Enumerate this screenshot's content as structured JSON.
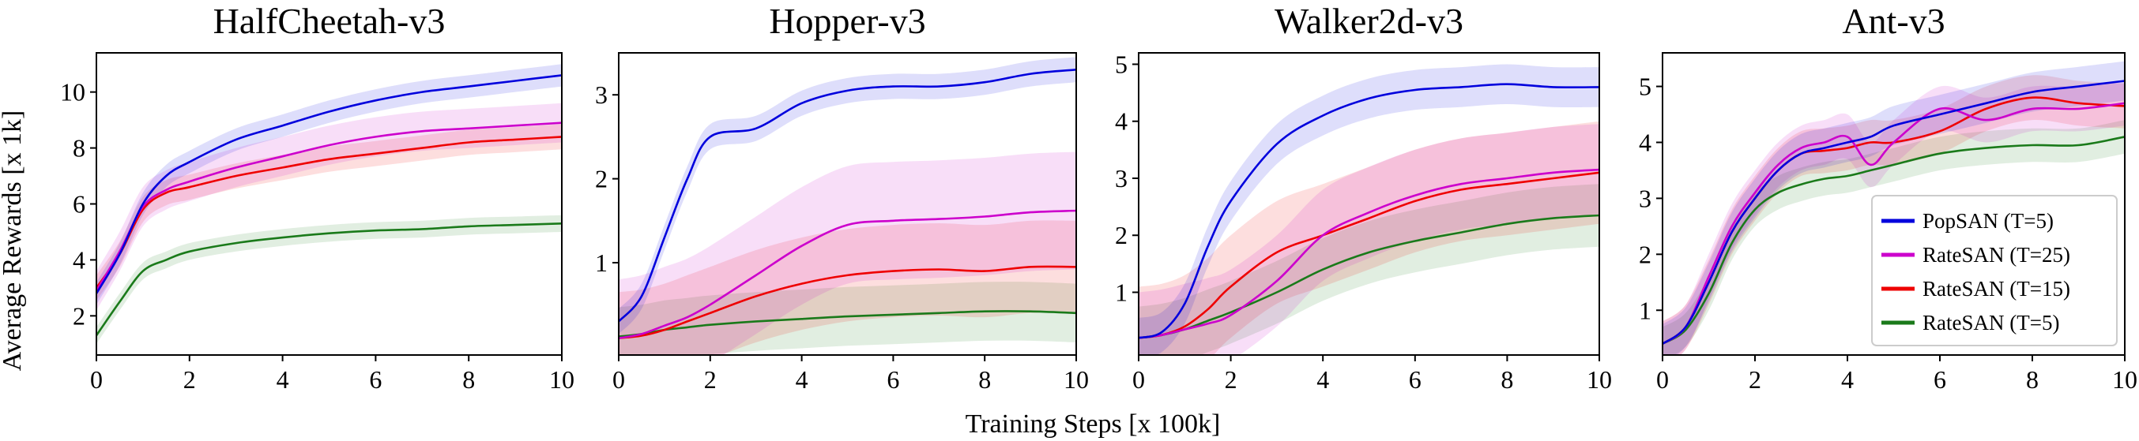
{
  "figure": {
    "xlabel": "Training Steps [x 100k]",
    "ylabel": "Average Rewards [x 1k]"
  },
  "legend": {
    "panel": 3,
    "entries": [
      {
        "label": "PopSAN (T=5)",
        "color": "#0000dd"
      },
      {
        "label": "RateSAN (T=25)",
        "color": "#cc00cc"
      },
      {
        "label": "RateSAN (T=15)",
        "color": "#ee0000"
      },
      {
        "label": "RateSAN (T=5)",
        "color": "#1a7a1a"
      }
    ]
  },
  "chart_data": [
    {
      "type": "line",
      "title": "HalfCheetah-v3",
      "xlim": [
        0,
        10
      ],
      "ylim": [
        0.6,
        11.4
      ],
      "xticks": [
        "0",
        "2",
        "4",
        "6",
        "8",
        "10"
      ],
      "yticks": [
        "2",
        "4",
        "6",
        "8",
        "10"
      ],
      "x": [
        0,
        0.5,
        1,
        1.5,
        2,
        3,
        4,
        5,
        6,
        7,
        8,
        9,
        10
      ],
      "series": [
        {
          "name": "PopSAN (T=5)",
          "color": "#0000dd",
          "band": 0.4,
          "values": [
            2.8,
            4.2,
            6.0,
            7.0,
            7.5,
            8.3,
            8.8,
            9.3,
            9.7,
            10.0,
            10.2,
            10.4,
            10.6
          ]
        },
        {
          "name": "RateSAN (T=25)",
          "color": "#cc00cc",
          "band": 0.7,
          "values": [
            2.9,
            4.3,
            5.9,
            6.5,
            6.8,
            7.3,
            7.7,
            8.1,
            8.4,
            8.6,
            8.7,
            8.8,
            8.9
          ]
        },
        {
          "name": "RateSAN (T=15)",
          "color": "#ee0000",
          "band": 0.45,
          "values": [
            3.0,
            4.2,
            5.8,
            6.4,
            6.6,
            7.0,
            7.3,
            7.6,
            7.8,
            8.0,
            8.2,
            8.3,
            8.4
          ]
        },
        {
          "name": "RateSAN (T=5)",
          "color": "#1a7a1a",
          "band": 0.3,
          "values": [
            1.3,
            2.5,
            3.6,
            4.0,
            4.3,
            4.6,
            4.8,
            4.95,
            5.05,
            5.1,
            5.2,
            5.25,
            5.3
          ]
        }
      ]
    },
    {
      "type": "line",
      "title": "Hopper-v3",
      "xlim": [
        0,
        10
      ],
      "ylim": [
        -0.1,
        3.5
      ],
      "xticks": [
        "0",
        "2",
        "4",
        "6",
        "8",
        "10"
      ],
      "yticks": [
        "1",
        "2",
        "3"
      ],
      "x": [
        0,
        0.5,
        1,
        1.5,
        2,
        3,
        4,
        5,
        6,
        7,
        8,
        9,
        10
      ],
      "series": [
        {
          "name": "PopSAN (T=5)",
          "color": "#0000dd",
          "band": 0.15,
          "values": [
            0.3,
            0.6,
            1.3,
            2.0,
            2.5,
            2.6,
            2.9,
            3.05,
            3.1,
            3.1,
            3.15,
            3.25,
            3.3
          ]
        },
        {
          "name": "RateSAN (T=25)",
          "color": "#cc00cc",
          "band": 0.7,
          "values": [
            0.1,
            0.15,
            0.25,
            0.35,
            0.5,
            0.85,
            1.2,
            1.45,
            1.5,
            1.52,
            1.55,
            1.6,
            1.62
          ]
        },
        {
          "name": "RateSAN (T=15)",
          "color": "#ee0000",
          "band": 0.55,
          "values": [
            0.1,
            0.13,
            0.2,
            0.3,
            0.4,
            0.6,
            0.75,
            0.85,
            0.9,
            0.92,
            0.9,
            0.95,
            0.95
          ]
        },
        {
          "name": "RateSAN (T=5)",
          "color": "#1a7a1a",
          "band": 0.35,
          "values": [
            0.12,
            0.15,
            0.2,
            0.23,
            0.26,
            0.3,
            0.33,
            0.36,
            0.38,
            0.4,
            0.42,
            0.42,
            0.4
          ]
        }
      ]
    },
    {
      "type": "line",
      "title": "Walker2d-v3",
      "xlim": [
        0,
        10
      ],
      "ylim": [
        -0.1,
        5.2
      ],
      "xticks": [
        "0",
        "2",
        "4",
        "6",
        "8",
        "10"
      ],
      "yticks": [
        "1",
        "2",
        "3",
        "4",
        "5"
      ],
      "x": [
        0,
        0.5,
        1,
        1.5,
        2,
        3,
        4,
        5,
        6,
        7,
        8,
        9,
        10
      ],
      "series": [
        {
          "name": "PopSAN (T=5)",
          "color": "#0000dd",
          "band": 0.35,
          "values": [
            0.2,
            0.3,
            0.8,
            1.8,
            2.6,
            3.6,
            4.1,
            4.4,
            4.55,
            4.6,
            4.65,
            4.6,
            4.6
          ]
        },
        {
          "name": "RateSAN (T=25)",
          "color": "#cc00cc",
          "band": 0.8,
          "values": [
            0.2,
            0.25,
            0.35,
            0.45,
            0.6,
            1.2,
            2.0,
            2.4,
            2.7,
            2.9,
            3.0,
            3.1,
            3.15
          ]
        },
        {
          "name": "RateSAN (T=15)",
          "color": "#ee0000",
          "band": 0.9,
          "values": [
            0.2,
            0.25,
            0.4,
            0.7,
            1.1,
            1.7,
            2.0,
            2.3,
            2.6,
            2.8,
            2.9,
            3.0,
            3.1
          ]
        },
        {
          "name": "RateSAN (T=5)",
          "color": "#1a7a1a",
          "band": 0.55,
          "values": [
            0.2,
            0.25,
            0.35,
            0.5,
            0.65,
            1.0,
            1.4,
            1.7,
            1.9,
            2.05,
            2.2,
            2.3,
            2.35
          ]
        }
      ]
    },
    {
      "type": "line",
      "title": "Ant-v3",
      "xlim": [
        0,
        10
      ],
      "ylim": [
        0.2,
        5.6
      ],
      "xticks": [
        "0",
        "2",
        "4",
        "6",
        "8",
        "10"
      ],
      "yticks": [
        "1",
        "2",
        "3",
        "4",
        "5"
      ],
      "x": [
        0,
        0.5,
        1,
        1.5,
        2,
        2.5,
        3,
        3.5,
        4,
        4.5,
        5,
        6,
        7,
        8,
        9,
        10
      ],
      "series": [
        {
          "name": "PopSAN (T=5)",
          "color": "#0000dd",
          "band": 0.35,
          "values": [
            0.4,
            0.7,
            1.5,
            2.4,
            3.0,
            3.5,
            3.8,
            3.9,
            4.0,
            4.1,
            4.3,
            4.5,
            4.7,
            4.9,
            5.0,
            5.1
          ]
        },
        {
          "name": "RateSAN (T=25)",
          "color": "#cc00cc",
          "band": 0.4,
          "values": [
            0.4,
            0.7,
            1.6,
            2.5,
            3.1,
            3.6,
            3.9,
            4.0,
            4.1,
            3.6,
            4.0,
            4.6,
            4.4,
            4.6,
            4.6,
            4.7
          ]
        },
        {
          "name": "RateSAN (T=15)",
          "color": "#ee0000",
          "band": 0.4,
          "values": [
            0.4,
            0.7,
            1.5,
            2.4,
            3.0,
            3.5,
            3.8,
            3.85,
            3.9,
            4.0,
            4.0,
            4.2,
            4.6,
            4.8,
            4.7,
            4.65
          ]
        },
        {
          "name": "RateSAN (T=5)",
          "color": "#1a7a1a",
          "band": 0.3,
          "values": [
            0.4,
            0.65,
            1.3,
            2.2,
            2.8,
            3.1,
            3.25,
            3.35,
            3.4,
            3.5,
            3.6,
            3.8,
            3.9,
            3.95,
            3.95,
            4.1
          ]
        }
      ]
    }
  ]
}
